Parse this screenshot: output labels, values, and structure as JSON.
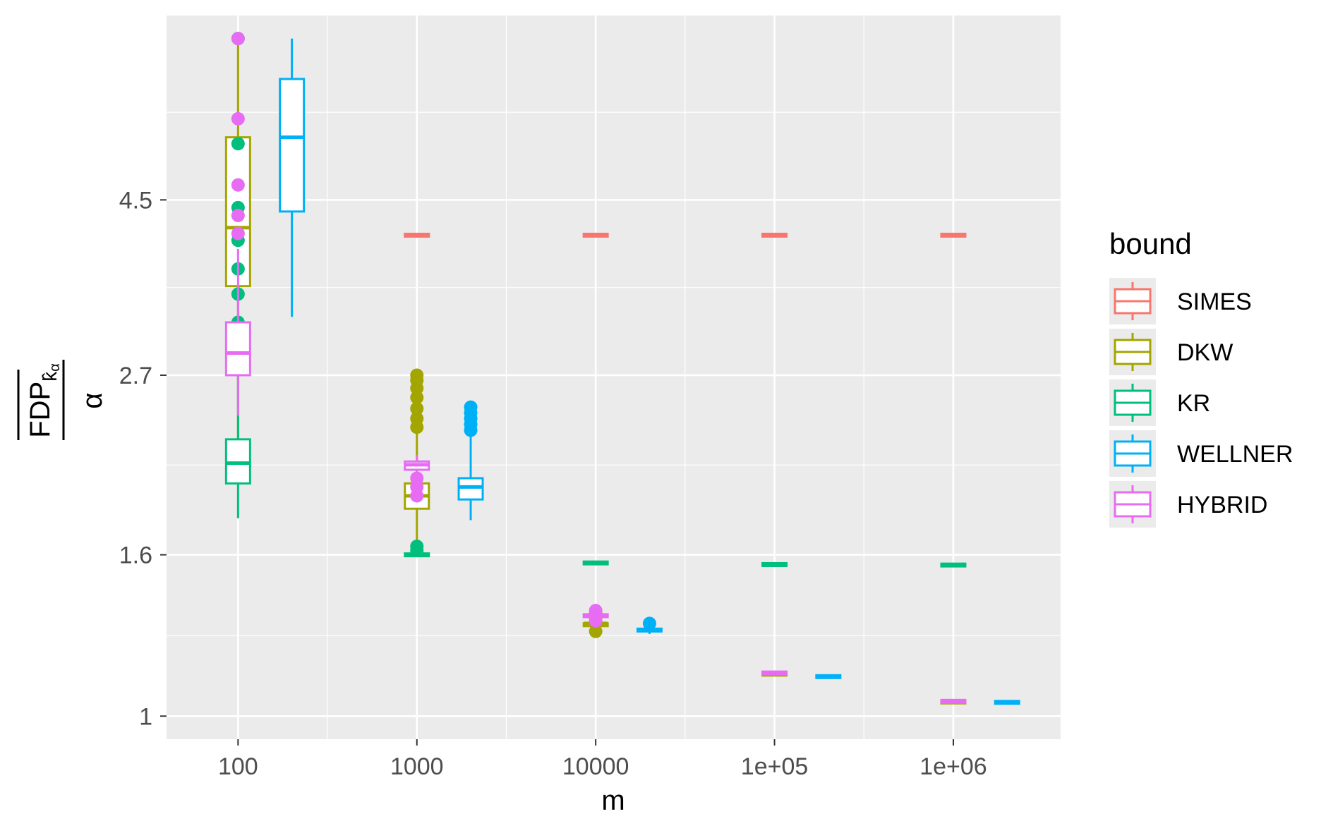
{
  "chart_data": {
    "type": "boxplot",
    "x_scale": "log10",
    "y_scale": "log",
    "xlabel": "m",
    "ylabel_numerator": "FDP",
    "ylabel_subscript": "k̂",
    "ylabel_subscript_sub": "α",
    "ylabel_denominator": "α",
    "x_ticks": [
      {
        "value": 100,
        "label": "100"
      },
      {
        "value": 1000,
        "label": "1000"
      },
      {
        "value": 10000,
        "label": "10000"
      },
      {
        "value": 100000,
        "label": "1e+05"
      },
      {
        "value": 1000000,
        "label": "1e+06"
      }
    ],
    "y_ticks": [
      {
        "value": 1,
        "label": "1"
      },
      {
        "value": 1.6,
        "label": "1.6"
      },
      {
        "value": 2.7,
        "label": "2.7"
      },
      {
        "value": 4.5,
        "label": "4.5"
      }
    ],
    "legend": {
      "title": "bound",
      "position": "right",
      "entries": [
        "SIMES",
        "DKW",
        "KR",
        "WELLNER",
        "HYBRID"
      ]
    },
    "grid": true,
    "series": [
      {
        "name": "SIMES",
        "color": "#F8766D",
        "boxes": [
          {
            "m": 100,
            "min": 4.06,
            "q1": 4.06,
            "median": 4.06,
            "q3": 4.06,
            "max": 4.06,
            "outliers": []
          },
          {
            "m": 1000,
            "min": 4.06,
            "q1": 4.06,
            "median": 4.06,
            "q3": 4.06,
            "max": 4.06,
            "outliers": []
          },
          {
            "m": 10000,
            "min": 4.06,
            "q1": 4.06,
            "median": 4.06,
            "q3": 4.06,
            "max": 4.06,
            "outliers": []
          },
          {
            "m": 100000,
            "min": 4.06,
            "q1": 4.06,
            "median": 4.06,
            "q3": 4.06,
            "max": 4.06,
            "outliers": []
          },
          {
            "m": 1000000,
            "min": 4.06,
            "q1": 4.06,
            "median": 4.06,
            "q3": 4.06,
            "max": 4.06,
            "outliers": []
          }
        ]
      },
      {
        "name": "DKW",
        "color": "#A3A500",
        "boxes": [
          {
            "m": 100,
            "min": 2.18,
            "q1": 3.5,
            "median": 4.15,
            "q3": 5.4,
            "max": 7.2,
            "outliers": []
          },
          {
            "m": 1000,
            "min": 1.67,
            "q1": 1.83,
            "median": 1.9,
            "q3": 1.97,
            "max": 2.28,
            "outliers": [
              2.32,
              2.38,
              2.45,
              2.53,
              2.6,
              2.66,
              2.7
            ]
          },
          {
            "m": 10000,
            "min": 1.29,
            "q1": 1.3,
            "median": 1.31,
            "q3": 1.31,
            "max": 1.32,
            "outliers": [
              1.28,
              1.33,
              1.34,
              1.35
            ]
          },
          {
            "m": 100000,
            "min": 1.125,
            "q1": 1.128,
            "median": 1.13,
            "q3": 1.132,
            "max": 1.135,
            "outliers": []
          },
          {
            "m": 1000000,
            "min": 1.04,
            "q1": 1.041,
            "median": 1.042,
            "q3": 1.043,
            "max": 1.044,
            "outliers": []
          }
        ]
      },
      {
        "name": "KR",
        "color": "#00BF7D",
        "boxes": [
          {
            "m": 100,
            "min": 1.78,
            "q1": 1.97,
            "median": 2.09,
            "q3": 2.24,
            "max": 2.85,
            "outliers": [
              3.15,
              3.42,
              3.68,
              4.0,
              4.4,
              5.3,
              7.2
            ]
          },
          {
            "m": 1000,
            "min": 1.6,
            "q1": 1.6,
            "median": 1.6,
            "q3": 1.6,
            "max": 1.6,
            "outliers": [
              1.62,
              1.64
            ]
          },
          {
            "m": 10000,
            "min": 1.555,
            "q1": 1.56,
            "median": 1.562,
            "q3": 1.565,
            "max": 1.57,
            "outliers": []
          },
          {
            "m": 100000,
            "min": 1.55,
            "q1": 1.553,
            "median": 1.555,
            "q3": 1.557,
            "max": 1.56,
            "outliers": []
          },
          {
            "m": 1000000,
            "min": 1.548,
            "q1": 1.551,
            "median": 1.553,
            "q3": 1.555,
            "max": 1.558,
            "outliers": []
          }
        ]
      },
      {
        "name": "WELLNER",
        "color": "#00B0F6",
        "boxes": [
          {
            "m": 200,
            "min": 3.2,
            "q1": 4.35,
            "median": 5.4,
            "q3": 6.4,
            "max": 7.2,
            "outliers": []
          },
          {
            "m": 2000,
            "min": 1.77,
            "q1": 1.88,
            "median": 1.95,
            "q3": 2.0,
            "max": 2.28,
            "outliers": [
              2.3,
              2.34,
              2.38,
              2.42,
              2.46
            ]
          },
          {
            "m": 20000,
            "min": 1.27,
            "q1": 1.28,
            "median": 1.285,
            "q3": 1.29,
            "max": 1.3,
            "outliers": [
              1.31
            ]
          },
          {
            "m": 200000,
            "min": 1.117,
            "q1": 1.12,
            "median": 1.122,
            "q3": 1.124,
            "max": 1.127,
            "outliers": []
          },
          {
            "m": 2000000,
            "min": 1.038,
            "q1": 1.04,
            "median": 1.041,
            "q3": 1.042,
            "max": 1.043,
            "outliers": []
          }
        ]
      },
      {
        "name": "HYBRID",
        "color": "#E76BF3",
        "boxes": [
          {
            "m": 100,
            "min": 2.4,
            "q1": 2.7,
            "median": 2.88,
            "q3": 3.15,
            "max": 3.9,
            "outliers": [
              4.08,
              4.3,
              4.7,
              5.7,
              7.2
            ]
          },
          {
            "m": 1000,
            "min": 1.9,
            "q1": 2.05,
            "median": 2.08,
            "q3": 2.1,
            "max": 2.14,
            "outliers": [
              1.9,
              1.95,
              2.0
            ]
          },
          {
            "m": 10000,
            "min": 1.33,
            "q1": 1.335,
            "median": 1.34,
            "q3": 1.345,
            "max": 1.35,
            "outliers": [
              1.32,
              1.36
            ]
          },
          {
            "m": 100000,
            "min": 1.13,
            "q1": 1.132,
            "median": 1.134,
            "q3": 1.136,
            "max": 1.138,
            "outliers": []
          },
          {
            "m": 1000000,
            "min": 1.042,
            "q1": 1.043,
            "median": 1.044,
            "q3": 1.045,
            "max": 1.046,
            "outliers": []
          }
        ]
      }
    ]
  }
}
